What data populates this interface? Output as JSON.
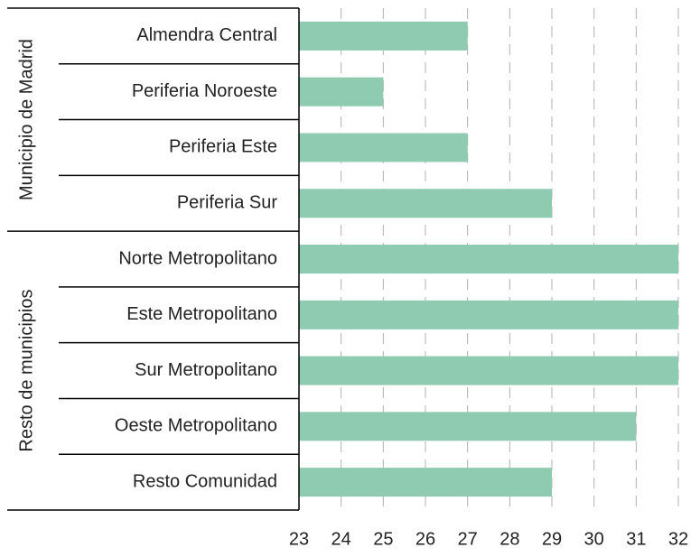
{
  "chart_data": {
    "type": "bar",
    "orientation": "horizontal",
    "color": "#8fcbb0",
    "groups": [
      {
        "name": "Municipio de Madrid",
        "categories": [
          "Almendra Central",
          "Periferia Noroeste",
          "Periferia Este",
          "Periferia Sur"
        ],
        "values": [
          27,
          25,
          27,
          29
        ]
      },
      {
        "name": "Resto de municipios",
        "categories": [
          "Norte Metropolitano",
          "Este Metropolitano",
          "Sur Metropolitano",
          "Oeste Metropolitano",
          "Resto Comunidad"
        ],
        "values": [
          32,
          32,
          32,
          31,
          29
        ]
      }
    ],
    "xlim": [
      23,
      32
    ],
    "xticks": [
      23,
      24,
      25,
      26,
      27,
      28,
      29,
      30,
      31,
      32
    ],
    "grid": true
  }
}
